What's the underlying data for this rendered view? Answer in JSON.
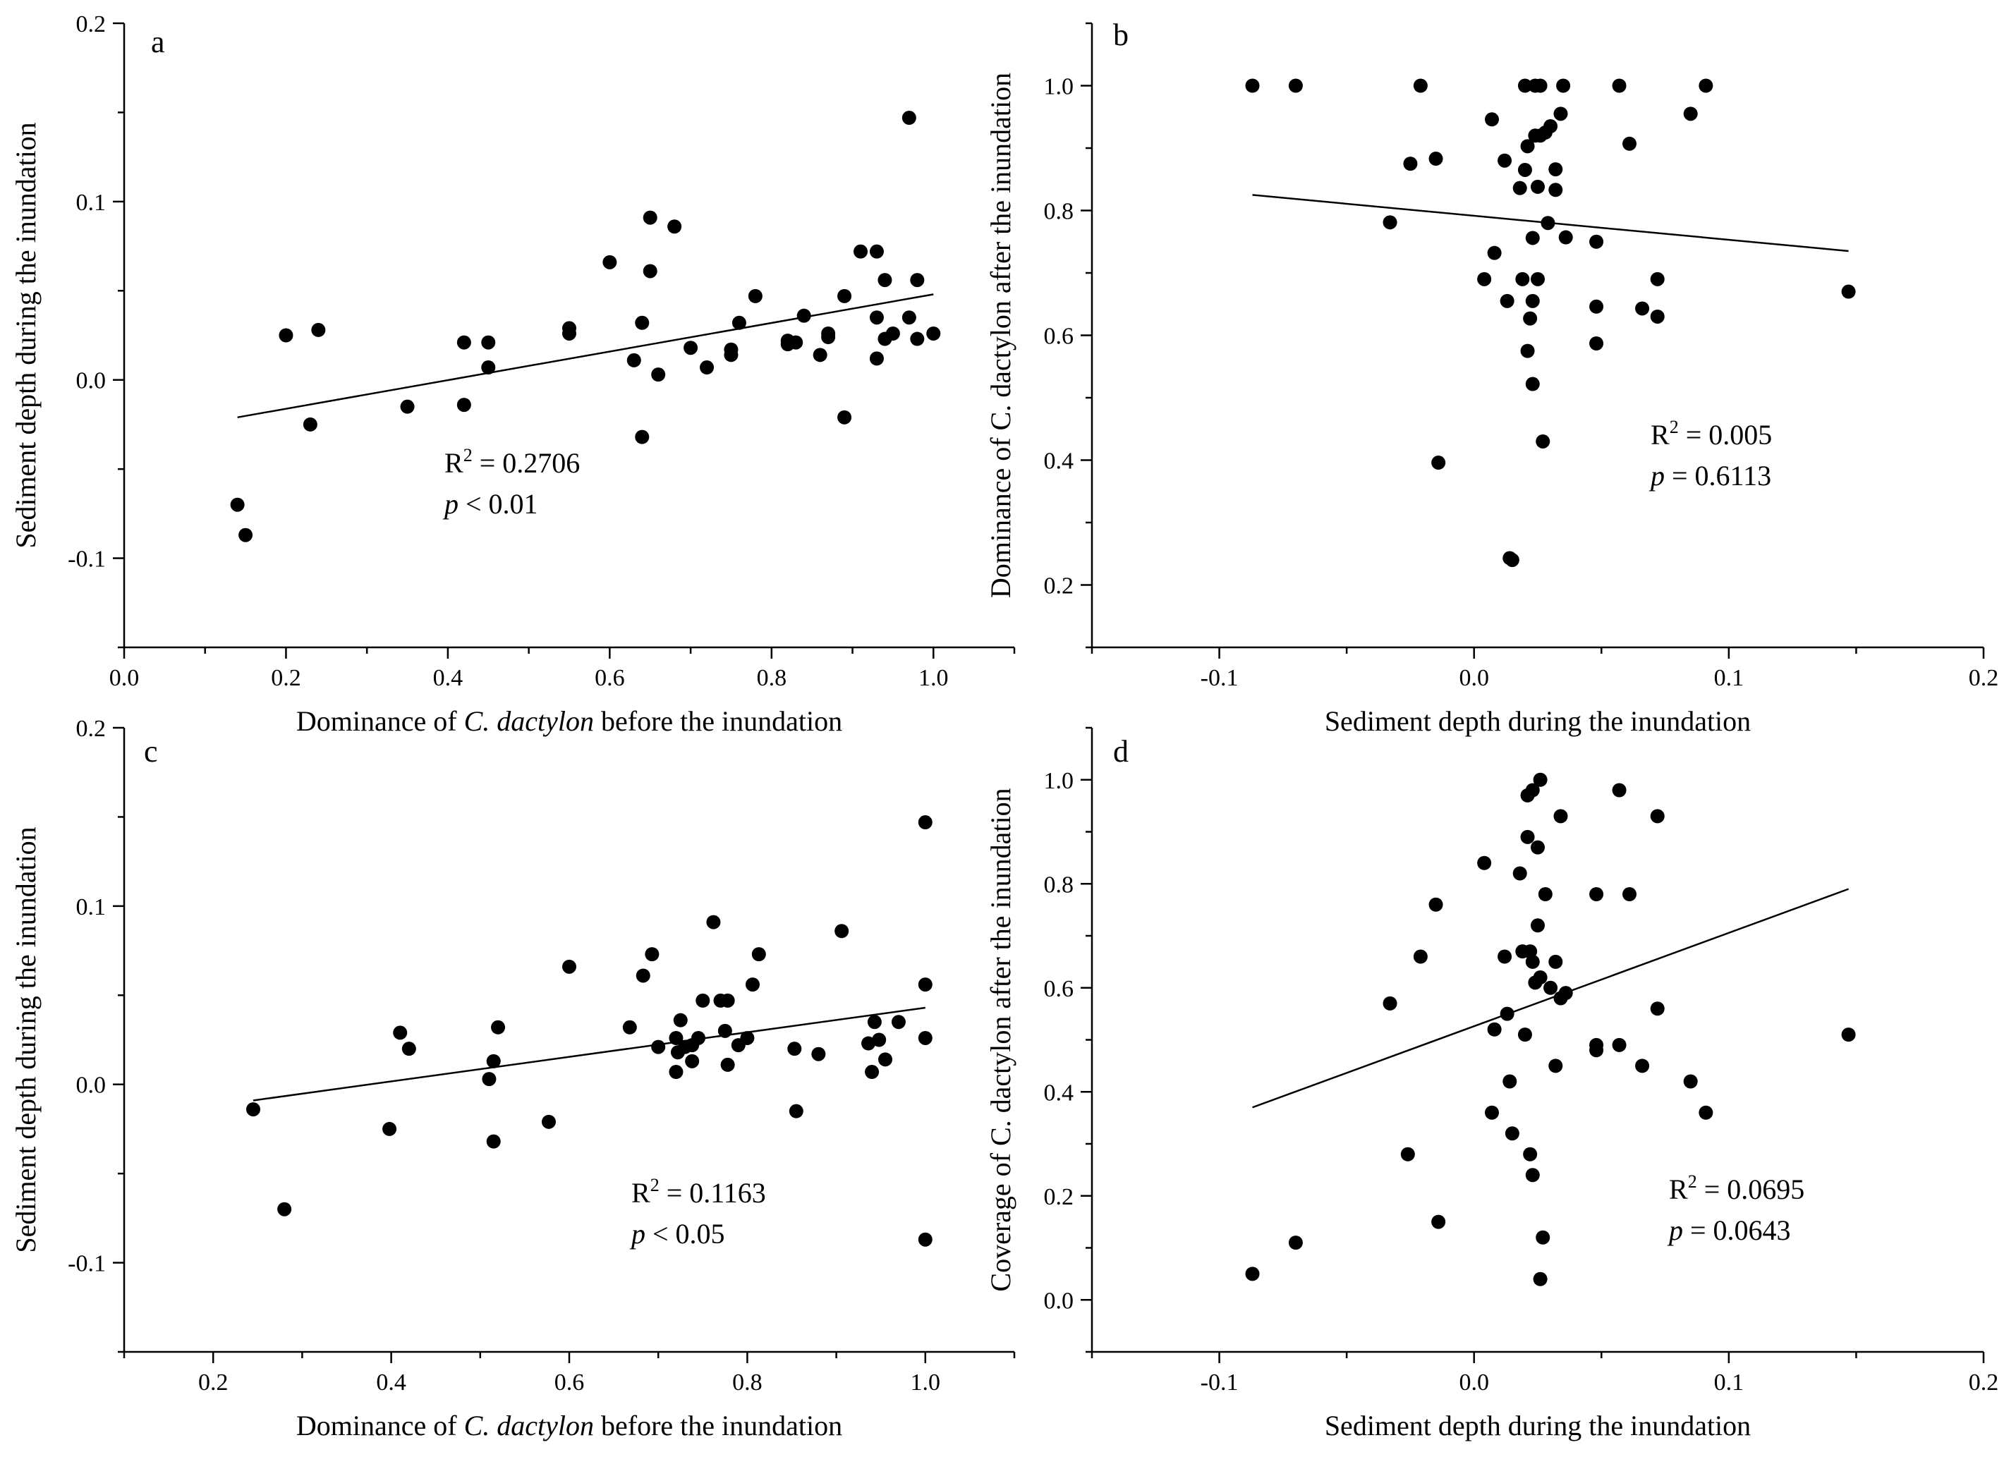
{
  "chart_data": [
    {
      "type": "scatter",
      "panel": "a",
      "xlabel": "Dominance of C. dactylon before the inundation",
      "xlabel_parts": [
        "Dominance of ",
        "C. dactylon",
        " before the inundation"
      ],
      "ylabel": "Sediment depth during the inundation",
      "xlim": [
        0.0,
        1.1
      ],
      "ylim": [
        -0.15,
        0.2
      ],
      "xticks": [
        0.0,
        0.2,
        0.4,
        0.6,
        0.8,
        1.0
      ],
      "xtick_labels": [
        "0.0",
        "0.2",
        "0.4",
        "0.6",
        "0.8",
        "1.0"
      ],
      "yticks": [
        -0.1,
        0.0,
        0.1,
        0.2
      ],
      "ytick_labels": [
        "-0.1",
        "0.0",
        "0.1",
        "0.2"
      ],
      "points": [
        [
          0.14,
          -0.07
        ],
        [
          0.15,
          -0.087
        ],
        [
          0.2,
          0.025
        ],
        [
          0.23,
          -0.025
        ],
        [
          0.24,
          0.028
        ],
        [
          0.35,
          -0.015
        ],
        [
          0.42,
          0.021
        ],
        [
          0.42,
          -0.014
        ],
        [
          0.45,
          0.021
        ],
        [
          0.45,
          0.007
        ],
        [
          0.55,
          0.029
        ],
        [
          0.55,
          0.026
        ],
        [
          0.6,
          0.066
        ],
        [
          0.63,
          0.011
        ],
        [
          0.64,
          0.032
        ],
        [
          0.64,
          -0.032
        ],
        [
          0.65,
          0.091
        ],
        [
          0.65,
          0.061
        ],
        [
          0.66,
          0.003
        ],
        [
          0.68,
          0.086
        ],
        [
          0.7,
          0.018
        ],
        [
          0.72,
          0.007
        ],
        [
          0.75,
          0.017
        ],
        [
          0.75,
          0.014
        ],
        [
          0.76,
          0.032
        ],
        [
          0.78,
          0.047
        ],
        [
          0.82,
          0.022
        ],
        [
          0.82,
          0.02
        ],
        [
          0.83,
          0.021
        ],
        [
          0.84,
          0.036
        ],
        [
          0.86,
          0.014
        ],
        [
          0.87,
          0.026
        ],
        [
          0.87,
          0.024
        ],
        [
          0.89,
          0.047
        ],
        [
          0.89,
          -0.021
        ],
        [
          0.91,
          0.072
        ],
        [
          0.93,
          0.072
        ],
        [
          0.93,
          0.035
        ],
        [
          0.93,
          0.012
        ],
        [
          0.94,
          0.056
        ],
        [
          0.94,
          0.023
        ],
        [
          0.95,
          0.026
        ],
        [
          0.97,
          0.147
        ],
        [
          0.97,
          0.035
        ],
        [
          0.98,
          0.023
        ],
        [
          0.98,
          0.056
        ],
        [
          1.0,
          0.026
        ]
      ],
      "fit": {
        "x": [
          0.14,
          1.0
        ],
        "y": [
          -0.021,
          0.048
        ]
      },
      "annotation": {
        "r2_label": "R",
        "r2_sup": "2",
        "r2_value": " = 0.2706",
        "p_symbol": "p",
        "p_text": " < 0.01"
      }
    },
    {
      "type": "scatter",
      "panel": "b",
      "xlabel": "Sediment depth during the inundation",
      "xlabel_parts": [
        "Sediment depth during the inundation",
        "",
        ""
      ],
      "ylabel": "Dominance of C. dactylon after the inundation",
      "xlim": [
        -0.15,
        0.2
      ],
      "ylim": [
        0.1,
        1.1
      ],
      "xticks": [
        -0.1,
        0.0,
        0.1,
        0.2
      ],
      "xtick_labels": [
        "-0.1",
        "0.0",
        "0.1",
        "0.2"
      ],
      "yticks": [
        0.2,
        0.4,
        0.6,
        0.8,
        1.0
      ],
      "ytick_labels": [
        "0.2",
        "0.4",
        "0.6",
        "0.8",
        "1.0"
      ],
      "points": [
        [
          -0.087,
          1.0
        ],
        [
          -0.07,
          1.0
        ],
        [
          -0.033,
          0.781
        ],
        [
          -0.025,
          0.875
        ],
        [
          -0.021,
          1.0
        ],
        [
          -0.015,
          0.883
        ],
        [
          -0.014,
          0.396
        ],
        [
          0.004,
          0.69
        ],
        [
          0.007,
          0.946
        ],
        [
          0.008,
          0.732
        ],
        [
          0.012,
          0.88
        ],
        [
          0.013,
          0.655
        ],
        [
          0.014,
          0.243
        ],
        [
          0.015,
          0.24
        ],
        [
          0.018,
          0.836
        ],
        [
          0.019,
          0.69
        ],
        [
          0.02,
          1.0
        ],
        [
          0.02,
          0.865
        ],
        [
          0.021,
          0.575
        ],
        [
          0.021,
          0.903
        ],
        [
          0.022,
          0.627
        ],
        [
          0.023,
          0.522
        ],
        [
          0.023,
          0.655
        ],
        [
          0.023,
          0.756
        ],
        [
          0.024,
          1.0
        ],
        [
          0.024,
          0.92
        ],
        [
          0.025,
          0.838
        ],
        [
          0.025,
          0.69
        ],
        [
          0.026,
          0.92
        ],
        [
          0.026,
          1.0
        ],
        [
          0.027,
          0.43
        ],
        [
          0.028,
          0.925
        ],
        [
          0.029,
          0.78
        ],
        [
          0.03,
          0.935
        ],
        [
          0.032,
          0.866
        ],
        [
          0.032,
          0.833
        ],
        [
          0.034,
          0.955
        ],
        [
          0.035,
          1.0
        ],
        [
          0.036,
          0.757
        ],
        [
          0.048,
          0.75
        ],
        [
          0.048,
          0.646
        ],
        [
          0.048,
          0.587
        ],
        [
          0.057,
          1.0
        ],
        [
          0.061,
          0.907
        ],
        [
          0.066,
          0.643
        ],
        [
          0.072,
          0.63
        ],
        [
          0.072,
          0.69
        ],
        [
          0.085,
          0.955
        ],
        [
          0.091,
          1.0
        ],
        [
          0.147,
          0.67
        ]
      ],
      "fit": {
        "x": [
          -0.087,
          0.147
        ],
        "y": [
          0.825,
          0.735
        ]
      },
      "annotation": {
        "r2_label": "R",
        "r2_sup": "2",
        "r2_value": " = 0.005",
        "p_symbol": "p",
        "p_text": " = 0.6113"
      }
    },
    {
      "type": "scatter",
      "panel": "c",
      "xlabel": "Dominance of C. dactylon before the inundation",
      "xlabel_parts": [
        "Dominance of ",
        "C. dactylon",
        " before the inundation"
      ],
      "ylabel": "Sediment depth during the inundation",
      "xlim": [
        0.1,
        1.1
      ],
      "ylim": [
        -0.15,
        0.2
      ],
      "xticks": [
        0.2,
        0.4,
        0.6,
        0.8,
        1.0
      ],
      "xtick_labels": [
        "0.2",
        "0.4",
        "0.6",
        "0.8",
        "1.0"
      ],
      "yticks": [
        -0.1,
        0.0,
        0.1,
        0.2
      ],
      "ytick_labels": [
        "-0.1",
        "0.0",
        "0.1",
        "0.2"
      ],
      "points": [
        [
          0.245,
          -0.014
        ],
        [
          0.28,
          -0.07
        ],
        [
          0.398,
          -0.025
        ],
        [
          0.41,
          0.029
        ],
        [
          0.42,
          0.02
        ],
        [
          0.51,
          0.003
        ],
        [
          0.515,
          0.013
        ],
        [
          0.515,
          -0.032
        ],
        [
          0.52,
          0.032
        ],
        [
          0.577,
          -0.021
        ],
        [
          0.6,
          0.066
        ],
        [
          0.668,
          0.032
        ],
        [
          0.683,
          0.061
        ],
        [
          0.693,
          0.073
        ],
        [
          0.7,
          0.021
        ],
        [
          0.72,
          0.026
        ],
        [
          0.72,
          0.007
        ],
        [
          0.722,
          0.018
        ],
        [
          0.725,
          0.036
        ],
        [
          0.73,
          0.021
        ],
        [
          0.738,
          0.022
        ],
        [
          0.738,
          0.013
        ],
        [
          0.745,
          0.026
        ],
        [
          0.75,
          0.047
        ],
        [
          0.762,
          0.091
        ],
        [
          0.77,
          0.047
        ],
        [
          0.775,
          0.03
        ],
        [
          0.778,
          0.047
        ],
        [
          0.778,
          0.011
        ],
        [
          0.79,
          0.022
        ],
        [
          0.8,
          0.026
        ],
        [
          0.806,
          0.056
        ],
        [
          0.813,
          0.073
        ],
        [
          0.853,
          0.02
        ],
        [
          0.855,
          -0.015
        ],
        [
          0.88,
          0.017
        ],
        [
          0.906,
          0.086
        ],
        [
          0.936,
          0.023
        ],
        [
          0.94,
          0.007
        ],
        [
          0.943,
          0.035
        ],
        [
          0.948,
          0.025
        ],
        [
          0.955,
          0.014
        ],
        [
          0.97,
          0.035
        ],
        [
          1.0,
          0.147
        ],
        [
          1.0,
          0.056
        ],
        [
          1.0,
          0.026
        ],
        [
          1.0,
          -0.087
        ]
      ],
      "fit": {
        "x": [
          0.245,
          1.0
        ],
        "y": [
          -0.009,
          0.043
        ]
      },
      "annotation": {
        "r2_label": "R",
        "r2_sup": "2",
        "r2_value": " = 0.1163",
        "p_symbol": "p",
        "p_text": " < 0.05"
      }
    },
    {
      "type": "scatter",
      "panel": "d",
      "xlabel": "Sediment depth during the inundation",
      "xlabel_parts": [
        "Sediment depth during the inundation",
        "",
        ""
      ],
      "ylabel": "Coverage of C. dactylon after the inundation",
      "xlim": [
        -0.15,
        0.2
      ],
      "ylim": [
        -0.1,
        1.1
      ],
      "xticks": [
        -0.1,
        0.0,
        0.1,
        0.2
      ],
      "xtick_labels": [
        "-0.1",
        "0.0",
        "0.1",
        "0.2"
      ],
      "yticks": [
        0.0,
        0.2,
        0.4,
        0.6,
        0.8,
        1.0
      ],
      "ytick_labels": [
        "0.0",
        "0.2",
        "0.4",
        "0.6",
        "0.8",
        "1.0"
      ],
      "points": [
        [
          -0.087,
          0.05
        ],
        [
          -0.07,
          0.11
        ],
        [
          -0.033,
          0.57
        ],
        [
          -0.026,
          0.28
        ],
        [
          -0.021,
          0.66
        ],
        [
          -0.015,
          0.76
        ],
        [
          -0.014,
          0.15
        ],
        [
          0.004,
          0.84
        ],
        [
          0.007,
          0.36
        ],
        [
          0.008,
          0.52
        ],
        [
          0.012,
          0.66
        ],
        [
          0.013,
          0.55
        ],
        [
          0.014,
          0.42
        ],
        [
          0.015,
          0.32
        ],
        [
          0.018,
          0.82
        ],
        [
          0.019,
          0.67
        ],
        [
          0.02,
          0.51
        ],
        [
          0.021,
          0.97
        ],
        [
          0.021,
          0.89
        ],
        [
          0.022,
          0.28
        ],
        [
          0.022,
          0.67
        ],
        [
          0.023,
          0.24
        ],
        [
          0.023,
          0.98
        ],
        [
          0.023,
          0.65
        ],
        [
          0.024,
          0.61
        ],
        [
          0.025,
          0.87
        ],
        [
          0.025,
          0.72
        ],
        [
          0.026,
          0.04
        ],
        [
          0.026,
          0.62
        ],
        [
          0.026,
          1.0
        ],
        [
          0.027,
          0.12
        ],
        [
          0.028,
          0.78
        ],
        [
          0.03,
          0.6
        ],
        [
          0.032,
          0.65
        ],
        [
          0.032,
          0.45
        ],
        [
          0.034,
          0.58
        ],
        [
          0.034,
          0.93
        ],
        [
          0.036,
          0.59
        ],
        [
          0.048,
          0.78
        ],
        [
          0.048,
          0.49
        ],
        [
          0.048,
          0.48
        ],
        [
          0.057,
          0.98
        ],
        [
          0.057,
          0.49
        ],
        [
          0.061,
          0.78
        ],
        [
          0.066,
          0.45
        ],
        [
          0.072,
          0.93
        ],
        [
          0.072,
          0.56
        ],
        [
          0.085,
          0.42
        ],
        [
          0.091,
          0.36
        ],
        [
          0.147,
          0.51
        ]
      ],
      "fit": {
        "x": [
          -0.087,
          0.147
        ],
        "y": [
          0.37,
          0.79
        ]
      },
      "annotation": {
        "r2_label": "R",
        "r2_sup": "2",
        "r2_value": " = 0.0695",
        "p_symbol": "p",
        "p_text": " = 0.0643"
      }
    }
  ]
}
